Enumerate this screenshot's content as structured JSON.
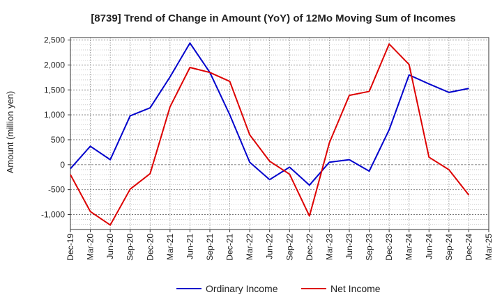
{
  "chart_data": {
    "type": "line",
    "title": "[8739]  Trend of Change in Amount (YoY) of 12Mo Moving Sum of Incomes",
    "xlabel": "",
    "ylabel": "Amount (million yen)",
    "ylim": [
      -1300,
      2550
    ],
    "yticks": [
      2500,
      2000,
      1500,
      1000,
      500,
      0,
      -500,
      -1000
    ],
    "ytick_labels": [
      "2,500",
      "2,000",
      "1,500",
      "1,000",
      "500",
      "0",
      "-500",
      "-1,000"
    ],
    "categories": [
      "Dec-19",
      "Mar-20",
      "Jun-20",
      "Sep-20",
      "Dec-20",
      "Mar-21",
      "Jun-21",
      "Sep-21",
      "Dec-21",
      "Mar-22",
      "Jun-22",
      "Sep-22",
      "Dec-22",
      "Mar-23",
      "Jun-23",
      "Sep-23",
      "Dec-23",
      "Mar-24",
      "Jun-24",
      "Sep-24",
      "Dec-24",
      "Mar-25"
    ],
    "grid": true,
    "legend_position": "bottom",
    "series": [
      {
        "name": "Ordinary Income",
        "color": "#0000cc",
        "values": [
          -80,
          370,
          100,
          980,
          1140,
          1760,
          2440,
          1850,
          1000,
          50,
          -300,
          -50,
          -410,
          50,
          100,
          -130,
          700,
          1800,
          1620,
          1450,
          1530,
          null
        ]
      },
      {
        "name": "Net Income",
        "color": "#dd0000",
        "values": [
          -200,
          -940,
          -1210,
          -490,
          -180,
          1160,
          1950,
          1850,
          1670,
          600,
          70,
          -190,
          -1030,
          440,
          1390,
          1470,
          2420,
          2010,
          150,
          -100,
          -610,
          null
        ]
      }
    ]
  }
}
